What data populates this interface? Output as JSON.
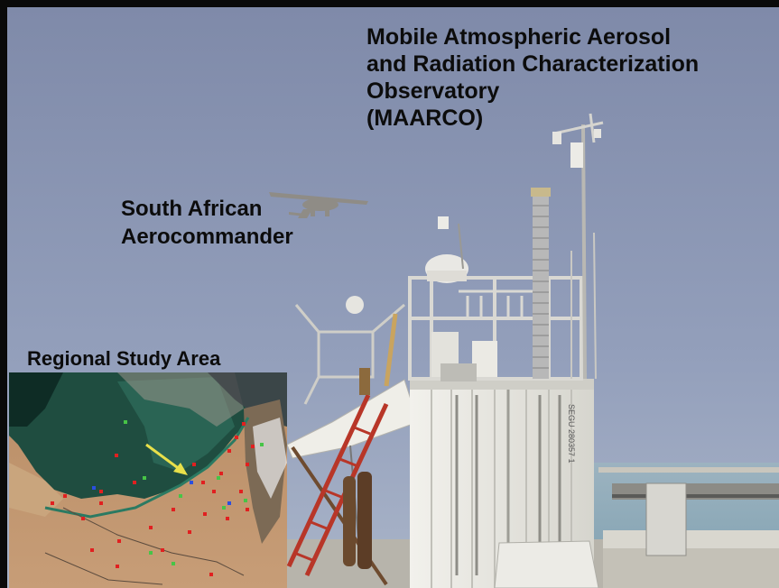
{
  "captions": {
    "observatory": [
      "Mobile Atmospheric Aerosol",
      "and Radiation Characterization",
      "Observatory",
      "(MAARCO)"
    ],
    "aircraft": [
      "South African",
      "Aerocommander"
    ],
    "map_title": "Regional Study Area"
  },
  "container_marking": "SEGU 280357 1",
  "map": {
    "sites": [
      {
        "type": "red"
      },
      {
        "type": "red"
      },
      {
        "type": "red"
      },
      {
        "type": "red"
      },
      {
        "type": "green"
      },
      {
        "type": "green"
      },
      {
        "type": "blue"
      }
    ],
    "arrow_color": "#e8e04a"
  },
  "colors": {
    "sky": "#8b96b3",
    "sea": "#9fb8c4",
    "container": "#e9e8e2",
    "caption_text": "#0c0c0c",
    "inset_border": "#c6623e",
    "site_red": "#e12020",
    "site_green": "#47c447",
    "site_blue": "#2a4fe0"
  }
}
